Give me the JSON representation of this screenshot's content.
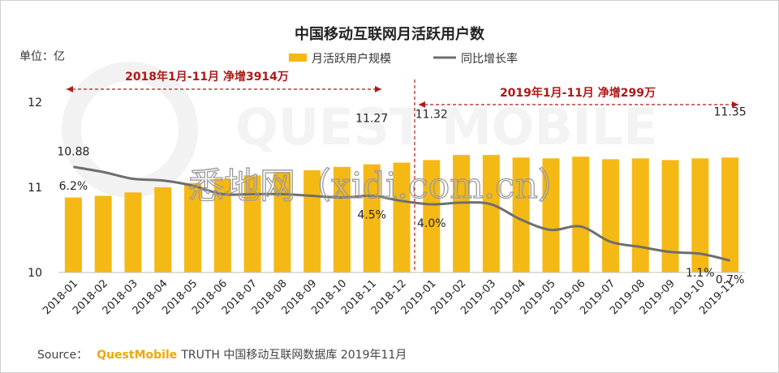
{
  "title": "中国移动互联网月活跃用户数",
  "unit_label": "单位：亿",
  "legend": [
    {
      "label": "月活跃用户规模",
      "color": "#f5b915",
      "kind": "bar"
    },
    {
      "label": "同比增长率",
      "color": "#6e6e6e",
      "kind": "line"
    }
  ],
  "annotations": {
    "left": "2018年1月-11月  净增3914万",
    "right": "2019年1月-11月  净增299万",
    "color": "#b01818"
  },
  "watermark": {
    "site": "悉地网（xidi.com.cn）",
    "brand": "QUEST MOBILE"
  },
  "source": {
    "prefix": "Source：",
    "brand": "QuestMobile",
    "suffix": " TRUTH 中国移动互联网数据库 2019年11月"
  },
  "chart_data": {
    "type": "bar",
    "categories": [
      "2018-01",
      "2018-02",
      "2018-03",
      "2018-04",
      "2018-05",
      "2018-06",
      "2018-07",
      "2018-08",
      "2018-09",
      "2018-10",
      "2018-11",
      "2018-12",
      "2019-01",
      "2019-02",
      "2019-03",
      "2019-04",
      "2019-05",
      "2019-06",
      "2019-07",
      "2019-08",
      "2019-09",
      "2019-10",
      "2019-11"
    ],
    "ylim": [
      10,
      12
    ],
    "yticks": [
      10,
      11,
      12
    ],
    "series": [
      {
        "name": "月活跃用户规模",
        "type": "bar",
        "color": "#f5b915",
        "values": [
          10.88,
          10.9,
          10.94,
          11.0,
          11.05,
          11.1,
          11.14,
          11.18,
          11.2,
          11.24,
          11.27,
          11.29,
          11.32,
          11.38,
          11.38,
          11.35,
          11.34,
          11.36,
          11.33,
          11.34,
          11.32,
          11.34,
          11.35
        ],
        "labels": {
          "0": "10.88",
          "10": "11.27",
          "12": "11.32",
          "22": "11.35"
        }
      },
      {
        "name": "同比增长率",
        "type": "line",
        "color": "#6e6e6e",
        "unit": "%",
        "ylim": [
          0,
          10
        ],
        "values": [
          6.2,
          5.9,
          5.5,
          5.4,
          5.1,
          4.6,
          4.6,
          4.6,
          4.5,
          4.4,
          4.5,
          4.2,
          4.0,
          4.1,
          4.0,
          3.1,
          2.5,
          2.7,
          1.8,
          1.5,
          1.2,
          1.1,
          0.7
        ],
        "labels": {
          "0": "6.2%",
          "10": "4.5%",
          "12": "4.0%",
          "21": "1.1%",
          "22": "0.7%"
        }
      }
    ]
  }
}
